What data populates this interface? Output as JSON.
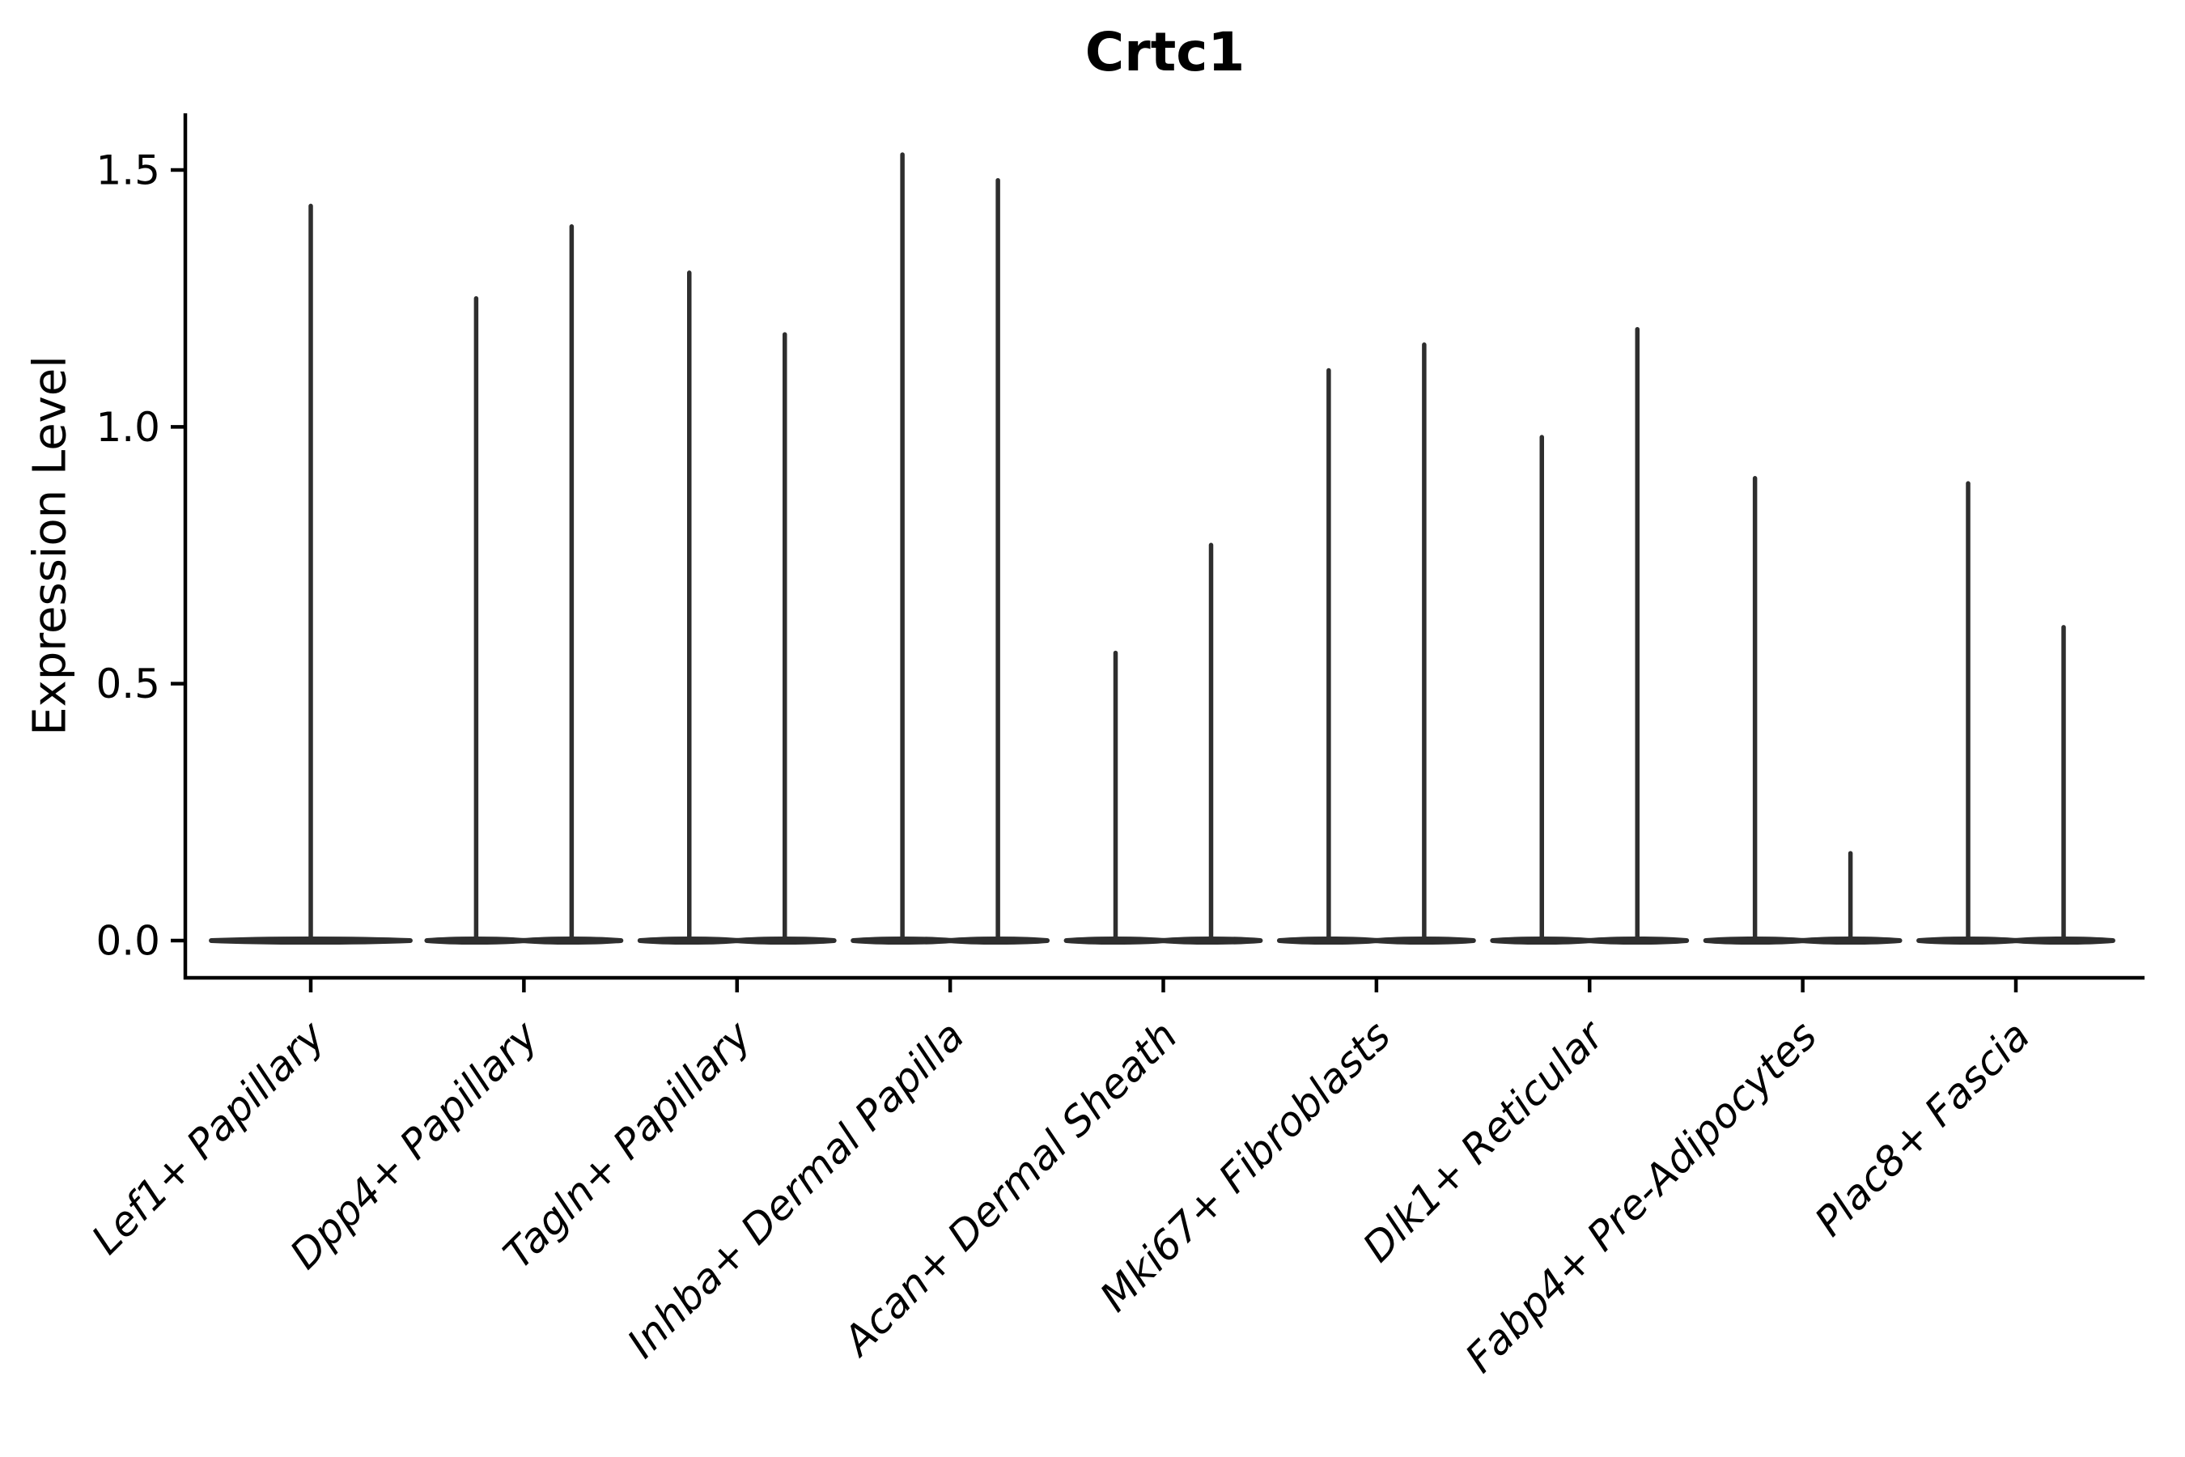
{
  "figure": {
    "title": "Crtc1",
    "y_axis_label": "Expression Level"
  },
  "chart_data": {
    "type": "violin",
    "title": "Crtc1",
    "xlabel": "",
    "ylabel": "Expression Level",
    "ylim": [
      -0.07,
      1.57
    ],
    "yticks": [
      "0.0",
      "0.5",
      "1.0",
      "1.5"
    ],
    "ytick_values": [
      0.0,
      0.5,
      1.0,
      1.5
    ],
    "grid": false,
    "legend": null,
    "note": "Each violin's density is concentrated at 0 expression (flat base lens) with a thin spike rising to the maximum expression value. The first category shows one full-width violin; all other categories show two half-width violins.",
    "categories": [
      "Lef1+ Papillary",
      "Dpp4+ Papillary",
      "Tagln+ Papillary",
      "Inhba+ Dermal Papilla",
      "Acan+ Dermal Sheath",
      "Mki67+ Fibroblasts",
      "Dlk1+ Reticular",
      "Fabp4+ Pre-Adipocytes",
      "Plac8+ Fascia"
    ],
    "series": [
      {
        "category": "Lef1+ Papillary",
        "violins": [
          {
            "max_expression": 1.43
          }
        ]
      },
      {
        "category": "Dpp4+ Papillary",
        "violins": [
          {
            "max_expression": 1.25
          },
          {
            "max_expression": 1.39
          }
        ]
      },
      {
        "category": "Tagln+ Papillary",
        "violins": [
          {
            "max_expression": 1.3
          },
          {
            "max_expression": 1.18
          }
        ]
      },
      {
        "category": "Inhba+ Dermal Papilla",
        "violins": [
          {
            "max_expression": 1.53
          },
          {
            "max_expression": 1.48
          }
        ]
      },
      {
        "category": "Acan+ Dermal Sheath",
        "violins": [
          {
            "max_expression": 0.56
          },
          {
            "max_expression": 0.77
          }
        ]
      },
      {
        "category": "Mki67+ Fibroblasts",
        "violins": [
          {
            "max_expression": 1.11
          },
          {
            "max_expression": 1.16
          }
        ]
      },
      {
        "category": "Dlk1+ Reticular",
        "violins": [
          {
            "max_expression": 0.98
          },
          {
            "max_expression": 1.19
          }
        ]
      },
      {
        "category": "Fabp4+ Pre-Adipocytes",
        "violins": [
          {
            "max_expression": 0.9
          },
          {
            "max_expression": 0.17
          }
        ]
      },
      {
        "category": "Plac8+ Fascia",
        "violins": [
          {
            "max_expression": 0.89
          },
          {
            "max_expression": 0.61
          }
        ]
      }
    ],
    "colors": {
      "violin": "#2e2e2e",
      "axis": "#000000",
      "text": "#000000",
      "background": "#ffffff"
    }
  }
}
